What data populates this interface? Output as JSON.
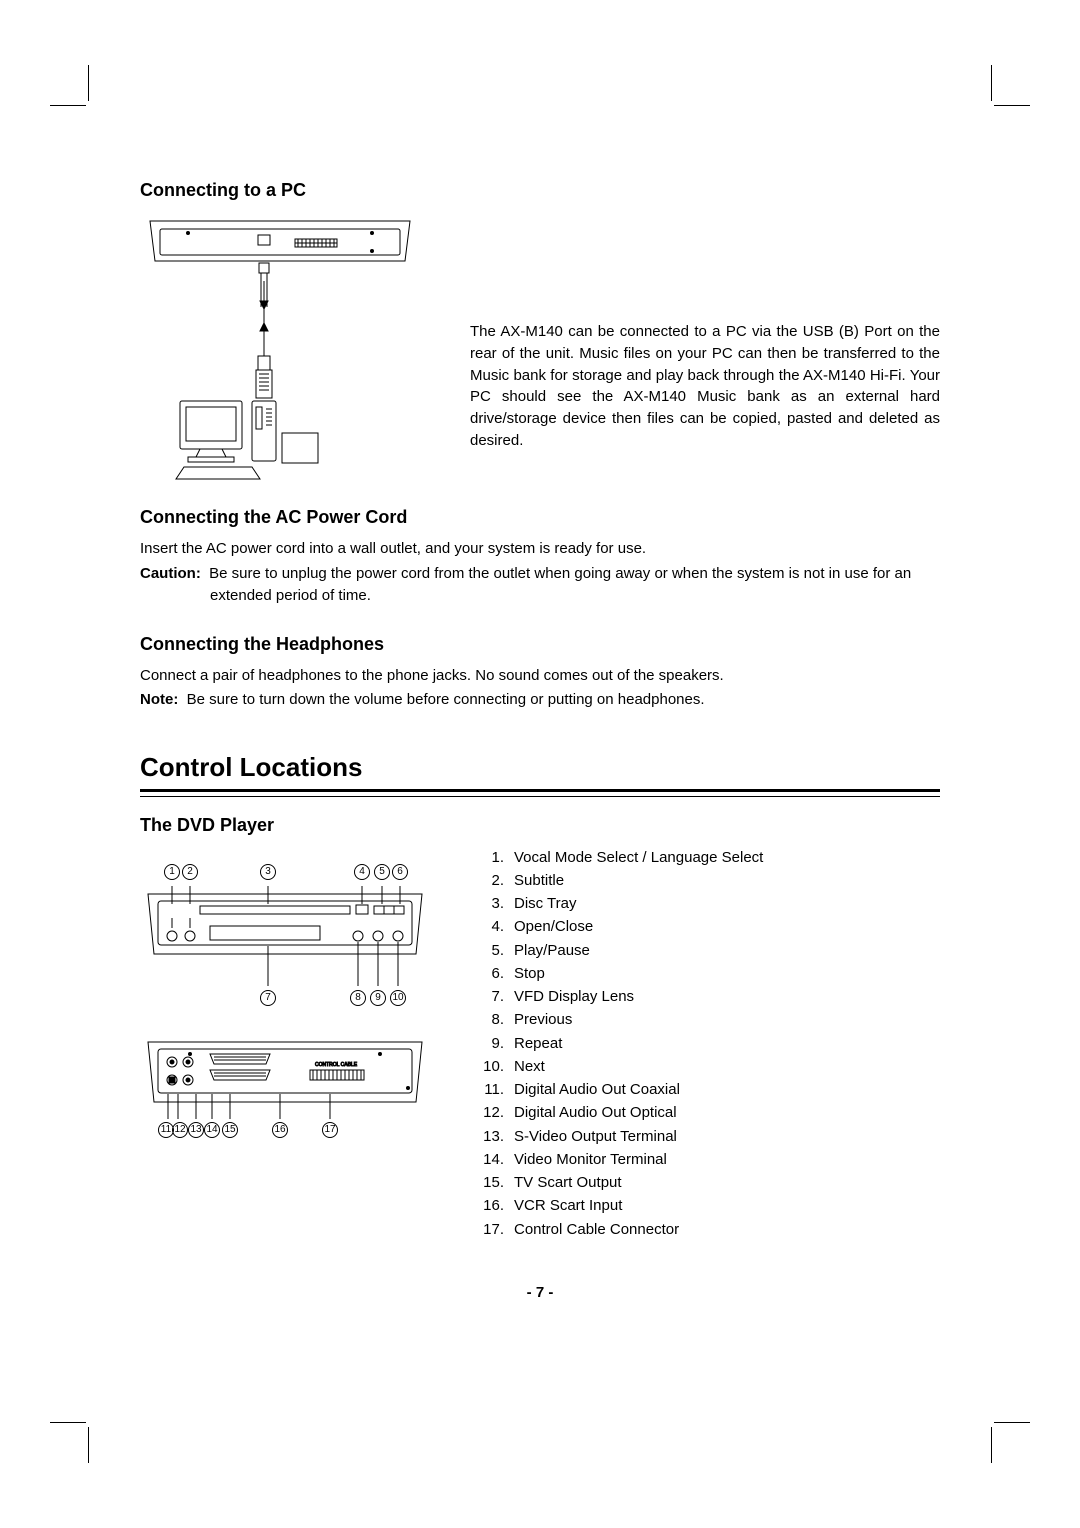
{
  "sections": {
    "pc": {
      "heading": "Connecting to a PC",
      "paragraph": "The AX-M140 can be connected to a PC via the USB (B) Port on the rear of the unit. Music files on your PC can then be transferred to the Music bank for storage and play back through the AX-M140 Hi-Fi. Your PC should see the AX-M140 Music bank as an external hard drive/storage device then files can be copied, pasted and deleted as desired."
    },
    "ac": {
      "heading": "Connecting the AC Power Cord",
      "line1": "Insert the AC power cord into a wall outlet, and your system is ready for use.",
      "caution_label": "Caution:",
      "caution_text": "Be sure to unplug the power cord from the outlet when going away or when the system is not in use for an extended period of time."
    },
    "hp": {
      "heading": "Connecting the Headphones",
      "line1": "Connect a pair of headphones to the phone jacks. No sound comes out of the speakers.",
      "note_label": "Note:",
      "note_text": "Be sure to turn down the volume before connecting or putting on headphones."
    },
    "controls": {
      "heading": "Control Locations",
      "sub_heading": "The DVD Player",
      "items": [
        "Vocal Mode Select / Language Select",
        "Subtitle",
        "Disc Tray",
        "Open/Close",
        "Play/Pause",
        "Stop",
        "VFD Display Lens",
        "Previous",
        "Repeat",
        "Next",
        "Digital Audio Out Coaxial",
        "Digital Audio Out Optical",
        "S-Video Output Terminal",
        "Video Monitor Terminal",
        "TV Scart Output",
        "VCR Scart Input",
        "Control Cable Connector"
      ],
      "front_top_labels": [
        "1",
        "2",
        "3",
        "4",
        "5",
        "6"
      ],
      "front_bottom_labels": [
        "7",
        "8",
        "9",
        "10"
      ],
      "rear_labels": [
        "11",
        "12",
        "13",
        "14",
        "15",
        "16",
        "17"
      ]
    }
  },
  "page_number": "-  7  -",
  "colors": {
    "text": "#000000",
    "bg": "#ffffff"
  }
}
